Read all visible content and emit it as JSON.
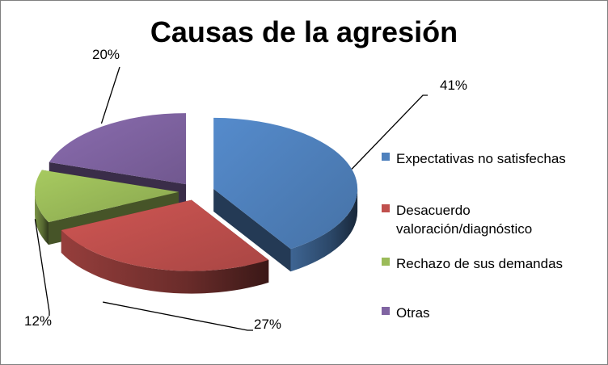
{
  "chart_data": {
    "type": "pie",
    "title": "Causas de la agresión",
    "series": [
      {
        "name": "",
        "categories": [
          "Expectativas no satisfechas",
          "Desacuerdo valoración/diagnóstico",
          "Rechazo de sus demandas",
          "Otras"
        ],
        "values": [
          41,
          27,
          12,
          20
        ],
        "labels": [
          "41%",
          "27%",
          "12%",
          "20%"
        ]
      }
    ],
    "legend": {
      "position": "right",
      "entries": [
        {
          "lines": [
            "Expectativas no satisfechas"
          ],
          "color": "#4f81bd"
        },
        {
          "lines": [
            "Desacuerdo",
            "valoración/diagnóstico"
          ],
          "color": "#c0504d"
        },
        {
          "lines": [
            "Rechazo de sus demandas"
          ],
          "color": "#9bbb59"
        },
        {
          "lines": [
            "Otras"
          ],
          "color": "#8064a2"
        }
      ]
    },
    "style": "3d-exploded"
  }
}
